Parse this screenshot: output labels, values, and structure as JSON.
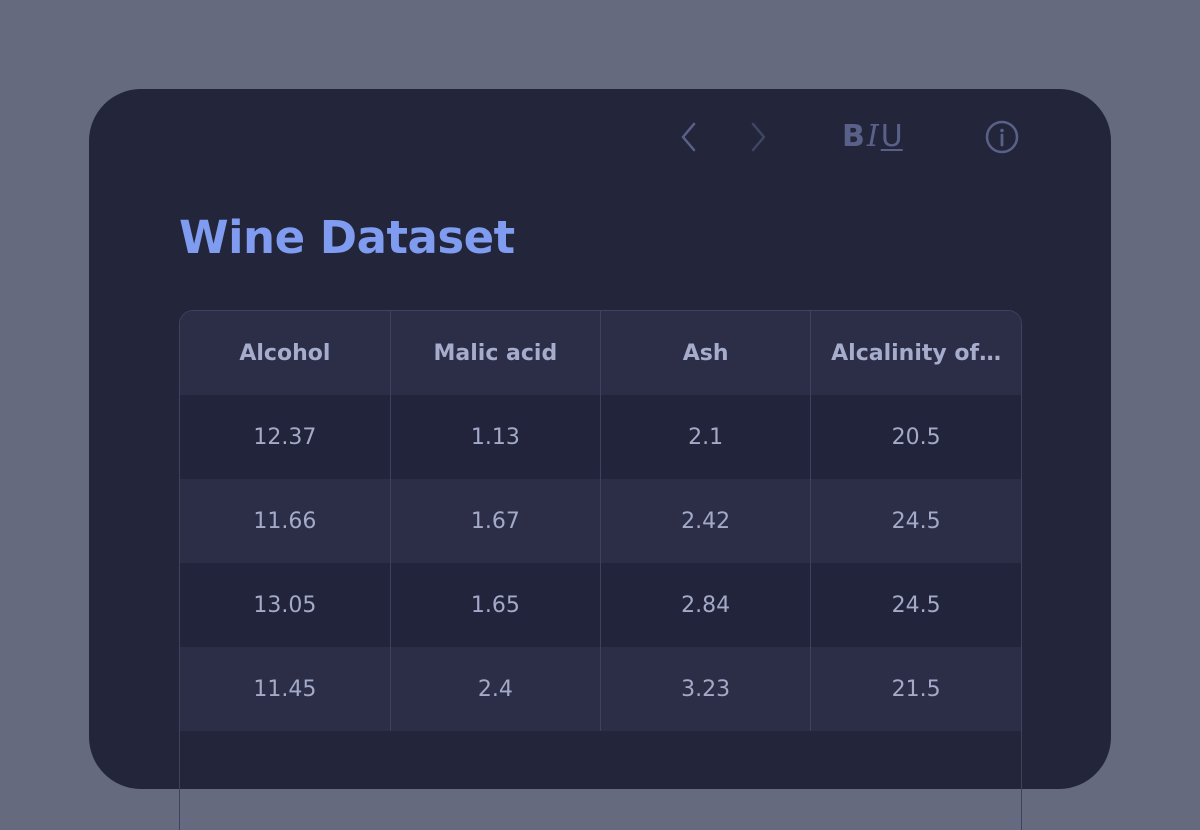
{
  "toolbar": {
    "back_icon": "chevron-left-icon",
    "forward_icon": "chevron-right-icon",
    "bold_label": "B",
    "italic_label": "I",
    "underline_label": "U",
    "info_icon": "info-circle-icon"
  },
  "title": "Wine Dataset",
  "table": {
    "columns": [
      "Alcohol",
      "Malic acid",
      "Ash",
      "Alcalinity of…"
    ],
    "rows": [
      [
        "12.37",
        "1.13",
        "2.1",
        "20.5"
      ],
      [
        "11.66",
        "1.67",
        "2.42",
        "24.5"
      ],
      [
        "13.05",
        "1.65",
        "2.84",
        "24.5"
      ],
      [
        "11.45",
        "2.4",
        "3.23",
        "21.5"
      ]
    ]
  },
  "colors": {
    "background": "#656a7e",
    "card": "#23263a",
    "title": "#7f9cf0",
    "toolbar_icons": "#5a6189",
    "header_row": "#2b2e46",
    "row_dark": "#21243a",
    "row_light": "#2b2e46",
    "cell_text": "#a3a9c7"
  }
}
